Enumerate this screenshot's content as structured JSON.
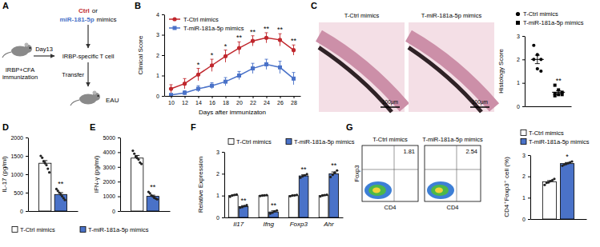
{
  "panels": [
    "A",
    "B",
    "C",
    "D",
    "E",
    "F",
    "G"
  ],
  "diagram": {
    "ctrl": "Ctrl",
    "or": "or",
    "mir": "miR-181-5p",
    "mimics": "mimics",
    "immunization": [
      "IRBP+CFA",
      "immunization"
    ],
    "day": "Day13",
    "t_cell": "IRBP-specific T cell",
    "transfer": "Transfer",
    "eau": "EAU"
  },
  "images": {
    "histology": {
      "labels": [
        "T-Ctrl mimics",
        "T-miR-181a-5p mimics"
      ],
      "scale_bar": "100μm"
    },
    "flow": {
      "labels": [
        "T-Ctrl mimics",
        "T-miR-181a-5p mimics"
      ],
      "values": [
        1.81,
        2.54
      ],
      "x_label": "CD4",
      "y_label": "Foxp3"
    }
  },
  "chart_data": [
    {
      "type": "line",
      "x_label": "Days after immunizaton",
      "y_label": "Clinical Score",
      "x": [
        10,
        12,
        14,
        16,
        18,
        20,
        22,
        24,
        26,
        28
      ],
      "xlim": [
        9,
        29
      ],
      "xticks": [
        10,
        12,
        14,
        16,
        18,
        20,
        22,
        24,
        26,
        28
      ],
      "ylim": [
        0,
        4
      ],
      "yticks": [
        0,
        1,
        2,
        3,
        4
      ],
      "legend": "top left",
      "series": [
        {
          "name": "T-Ctrl mimics",
          "color": "#c0272d",
          "marker": "circle",
          "values": [
            0.35,
            0.6,
            1.05,
            1.5,
            1.95,
            2.35,
            2.7,
            2.85,
            2.75,
            2.25
          ],
          "errors": [
            0.2,
            0.25,
            0.3,
            0.3,
            0.3,
            0.3,
            0.25,
            0.25,
            0.3,
            0.25
          ]
        },
        {
          "name": "T-miR-181a-5p mimics",
          "color": "#4a72c8",
          "marker": "square",
          "values": [
            0.05,
            0.15,
            0.35,
            0.5,
            0.7,
            1.0,
            1.35,
            1.55,
            1.4,
            0.85
          ],
          "errors": [
            0.05,
            0.1,
            0.15,
            0.15,
            0.2,
            0.2,
            0.25,
            0.25,
            0.3,
            0.3
          ]
        }
      ],
      "annotations": [
        {
          "x": 14,
          "series": 0,
          "text": "*"
        },
        {
          "x": 16,
          "series": 0,
          "text": "*"
        },
        {
          "x": 18,
          "series": 0,
          "text": "*"
        },
        {
          "x": 20,
          "series": 0,
          "text": "**"
        },
        {
          "x": 22,
          "series": 0,
          "text": "**"
        },
        {
          "x": 24,
          "series": 0,
          "text": "**"
        },
        {
          "x": 26,
          "series": 0,
          "text": "**"
        },
        {
          "x": 28,
          "series": 0,
          "text": "**"
        }
      ]
    },
    {
      "type": "dot_plot",
      "y_label": "Histology Score",
      "categories": [
        null,
        null
      ],
      "ylim": [
        0,
        3
      ],
      "yticks": [
        0,
        1,
        2,
        3
      ],
      "legend": "top",
      "series": [
        {
          "name": "T-Ctrl mimics",
          "color": "#000000",
          "marker": "circle",
          "points": [
            2.6,
            2.2,
            2.0,
            2.0,
            1.6,
            1.5
          ],
          "mean": 2.0,
          "error": 0.18
        },
        {
          "name": "T-miR-181a-5p mimics",
          "color": "#000000",
          "marker": "square",
          "points": [
            0.9,
            0.7,
            0.6,
            0.55,
            0.5,
            0.5,
            0.45
          ],
          "mean": 0.6,
          "error": 0.07
        }
      ],
      "annotations": [
        {
          "category": 1,
          "series": 1,
          "text": "**"
        }
      ]
    },
    {
      "type": "bar",
      "y_label": "IL-17 (pg/ml)",
      "categories": [
        null
      ],
      "ylim": [
        0,
        2000
      ],
      "yticks": [
        0,
        500,
        1000,
        1500,
        2000
      ],
      "legend": "bottom",
      "series": [
        {
          "name": "T-Ctrl mimics",
          "color": "#ffffff",
          "values": [
            1300
          ],
          "errors": [
            70
          ],
          "points": [
            [
              1500,
              1450,
              1350,
              1300,
              1250,
              1150,
              1050
            ]
          ]
        },
        {
          "name": "T-miR-181a-5p mimics",
          "color": "#4a72c8",
          "values": [
            450
          ],
          "errors": [
            50
          ],
          "points": [
            [
              600,
              550,
              500,
              450,
              400,
              350,
              300
            ]
          ]
        }
      ],
      "annotations": [
        {
          "category": 0,
          "series": 1,
          "text": "**"
        }
      ]
    },
    {
      "type": "bar",
      "y_label": "IFN-γ (pg/ml)",
      "categories": [
        null
      ],
      "ylim": [
        0,
        5000
      ],
      "yticks": [
        0,
        1000,
        2000,
        3000,
        4000,
        5000
      ],
      "legend": false,
      "series": [
        {
          "color": "#ffffff",
          "values": [
            3600
          ],
          "errors": [
            180
          ],
          "points": [
            [
              4100,
              3900,
              3700,
              3600,
              3500,
              3300,
              3200
            ]
          ]
        },
        {
          "color": "#4a72c8",
          "values": [
            1000
          ],
          "errors": [
            80
          ],
          "points": [
            [
              1300,
              1200,
              1050,
              1000,
              900,
              850,
              800
            ]
          ]
        }
      ],
      "annotations": [
        {
          "category": 0,
          "series": 1,
          "text": "**"
        }
      ]
    },
    {
      "type": "bar",
      "y_label": "Relative Expression",
      "categories": [
        "Il17",
        "Ifng",
        "Foxp3",
        "Ahr"
      ],
      "ylim": [
        0,
        3
      ],
      "yticks": [
        0,
        1,
        2,
        3
      ],
      "legend": "top",
      "series": [
        {
          "name": "T-Ctrl mimics",
          "color": "#ffffff",
          "values": [
            1.0,
            1.0,
            1.0,
            1.0
          ],
          "errors": [
            0.03,
            0.02,
            0.02,
            0.03
          ],
          "points": [
            [
              0.95,
              1.0,
              1.03,
              1.05
            ],
            [
              0.98,
              1.0,
              1.01,
              1.02
            ],
            [
              0.97,
              1.0,
              1.01,
              1.03
            ],
            [
              0.96,
              1.0,
              1.02,
              1.04
            ]
          ]
        },
        {
          "name": "T-miR-181a-5p mimics",
          "color": "#4a72c8",
          "values": [
            0.5,
            0.25,
            1.9,
            2.0
          ],
          "errors": [
            0.04,
            0.05,
            0.05,
            0.08
          ],
          "points": [
            [
              0.45,
              0.48,
              0.52,
              0.56
            ],
            [
              0.18,
              0.22,
              0.28,
              0.32
            ],
            [
              1.82,
              1.88,
              1.93,
              1.98
            ],
            [
              1.85,
              1.95,
              2.05,
              2.15
            ]
          ]
        }
      ],
      "annotations": [
        {
          "category": 0,
          "series": 1,
          "text": "**"
        },
        {
          "category": 1,
          "series": 1,
          "text": "**"
        },
        {
          "category": 2,
          "series": 1,
          "text": "**"
        },
        {
          "category": 3,
          "series": 1,
          "text": "**"
        }
      ]
    },
    {
      "type": "bar",
      "y_label": "CD4⁺Foxp3⁺ cell (%)",
      "categories": [
        null
      ],
      "ylim": [
        0,
        3
      ],
      "yticks": [
        0,
        1,
        2,
        3
      ],
      "legend": "top",
      "series": [
        {
          "name": "T-Ctrl mimics",
          "color": "#ffffff",
          "values": [
            1.75
          ],
          "errors": [
            0.05
          ],
          "points": [
            [
              1.6,
              1.7,
              1.72,
              1.78,
              1.82,
              1.88
            ]
          ]
        },
        {
          "name": "T-miR-181a-5p mimics",
          "color": "#4a72c8",
          "values": [
            2.6
          ],
          "errors": [
            0.05
          ],
          "points": [
            [
              2.5,
              2.55,
              2.58,
              2.62,
              2.66,
              2.7
            ]
          ]
        }
      ],
      "annotations": [
        {
          "category": 0,
          "series": 1,
          "text": "*"
        }
      ]
    }
  ]
}
